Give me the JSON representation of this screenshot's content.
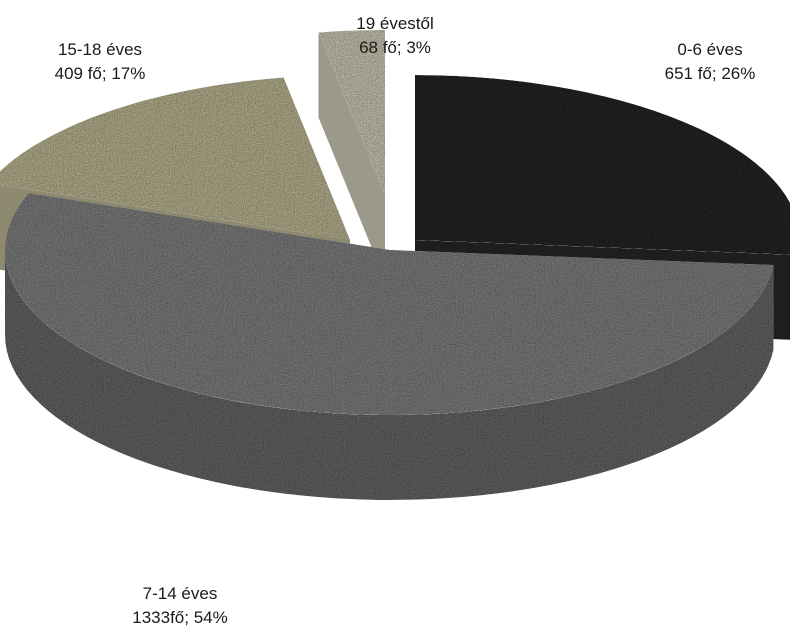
{
  "chart_data": {
    "type": "pie",
    "three_d": true,
    "exploded": true,
    "legend": "none",
    "slices": [
      {
        "category": "0-6 éves",
        "count": 651,
        "percent": 26,
        "value_label": "651 fő; 26%",
        "color": "#2b2b2b"
      },
      {
        "category": "7-14 éves",
        "count": 1333,
        "percent": 54,
        "value_label": "1333fő; 54%",
        "color": "#8c8c8c"
      },
      {
        "category": "15-18 éves",
        "count": 409,
        "percent": 17,
        "value_label": "409 fő; 17%",
        "color": "#cbc59f"
      },
      {
        "category": "19 évestől",
        "count": 68,
        "percent": 3,
        "value_label": "68 fő; 3%",
        "color": "#dcdac5"
      }
    ]
  }
}
